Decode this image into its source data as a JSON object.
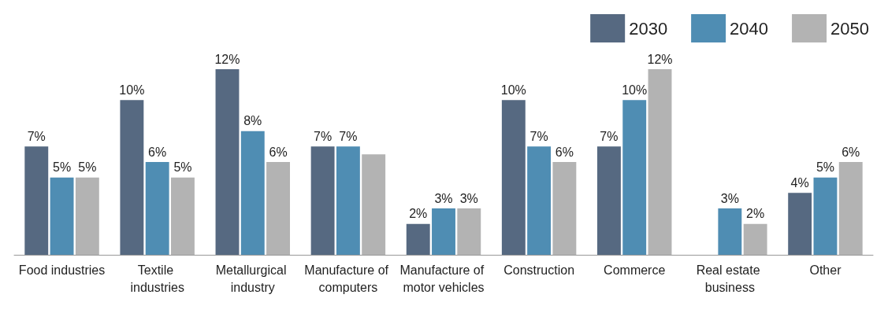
{
  "chart_data": {
    "type": "bar",
    "categories": [
      "Food industries",
      "Textile industries",
      "Metallurgical industry",
      "Manufacture of computers",
      "Manufacture of motor vehicles",
      "Construction",
      "Commerce",
      "Real estate business",
      "Other"
    ],
    "series": [
      {
        "name": "2030",
        "color": "#566981",
        "values": [
          7,
          10,
          12,
          7,
          2,
          10,
          7,
          null,
          4
        ],
        "value_labels": [
          "7%",
          "10%",
          "12%",
          "7%",
          "2%",
          "10%",
          "7%",
          null,
          "4%"
        ]
      },
      {
        "name": "2040",
        "color": "#4f8db3",
        "values": [
          5,
          6,
          8,
          7,
          3,
          7,
          10,
          3,
          5
        ],
        "value_labels": [
          "5%",
          "6%",
          "8%",
          "7%",
          "3%",
          "7%",
          "10%",
          "3%",
          "5%"
        ]
      },
      {
        "name": "2050",
        "color": "#b3b3b3",
        "values": [
          5,
          5,
          6,
          6.5,
          3,
          6,
          12,
          2,
          6
        ],
        "value_labels": [
          "5%",
          "5%",
          "6%",
          null,
          "3%",
          "6%",
          "12%",
          "2%",
          "6%"
        ]
      }
    ],
    "legend": "top right"
  }
}
